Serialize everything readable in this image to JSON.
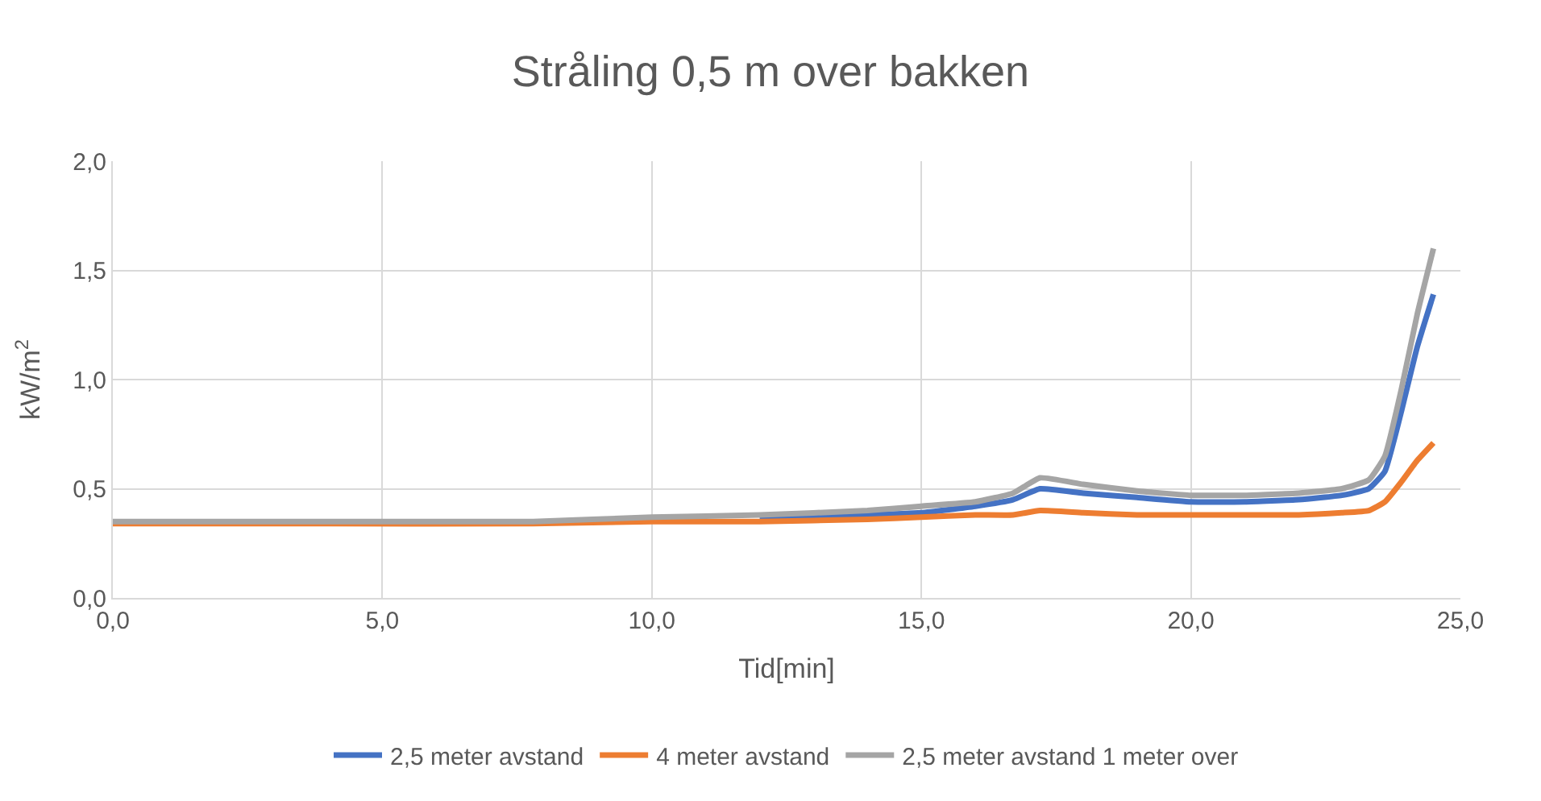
{
  "chart_data": {
    "type": "line",
    "title": "Stråling 0,5 m over bakken",
    "xlabel": "Tid[min]",
    "ylabel": "kW/m$^{2}$",
    "xlim": [
      0,
      25
    ],
    "xticks": [
      {
        "value": 0,
        "label": "0,0"
      },
      {
        "value": 5,
        "label": "5,0"
      },
      {
        "value": 10,
        "label": "10,0"
      },
      {
        "value": 15,
        "label": "15,0"
      },
      {
        "value": 20,
        "label": "20,0"
      },
      {
        "value": 25,
        "label": "25,0"
      }
    ],
    "ylim": [
      0,
      2
    ],
    "yticks": [
      {
        "value": 0,
        "label": "0,0"
      },
      {
        "value": 0.5,
        "label": "0,5"
      },
      {
        "value": 1,
        "label": "1,0"
      },
      {
        "value": 1.5,
        "label": "1,5"
      },
      {
        "value": 2,
        "label": "2,0"
      }
    ],
    "grid": true,
    "legend": "bottom",
    "marker": "none",
    "line_style": "solid",
    "x": [
      0,
      4,
      7.8,
      10,
      12,
      14,
      15,
      16,
      16.7,
      17.2,
      18,
      19,
      20,
      21,
      22,
      22.8,
      23.3,
      23.6,
      23.9,
      24.2,
      24.5
    ],
    "series": [
      {
        "name": "2,5 meter avstand",
        "color": "#4472c4",
        "values": [
          null,
          null,
          null,
          null,
          0.37,
          0.38,
          0.39,
          0.42,
          0.45,
          0.5,
          0.48,
          0.46,
          0.44,
          0.44,
          0.45,
          0.47,
          0.5,
          0.58,
          0.85,
          1.15,
          1.39
        ]
      },
      {
        "name": "4 meter avstand",
        "color": "#ed7d31",
        "values": [
          0.34,
          0.34,
          0.34,
          0.35,
          0.35,
          0.36,
          0.37,
          0.38,
          0.38,
          0.4,
          0.39,
          0.38,
          0.38,
          0.38,
          0.38,
          0.39,
          0.4,
          0.44,
          0.53,
          0.63,
          0.71
        ]
      },
      {
        "name": "2,5 meter avstand 1 meter over",
        "color": "#a5a5a5",
        "values": [
          0.35,
          0.35,
          0.35,
          0.37,
          0.38,
          0.4,
          0.42,
          0.44,
          0.48,
          0.55,
          0.52,
          0.49,
          0.47,
          0.47,
          0.48,
          0.5,
          0.54,
          0.65,
          0.95,
          1.3,
          1.6
        ]
      }
    ]
  }
}
